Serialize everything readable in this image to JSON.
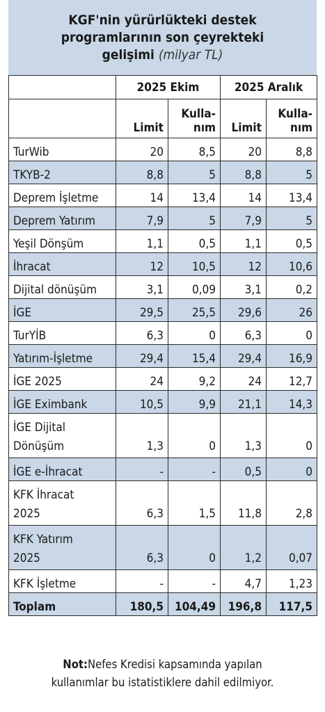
{
  "title": {
    "line1": "KGF'nin yürürlükteki destek",
    "line2": "programlarının son çeyrekteki",
    "line3_main": "gelişimi",
    "line3_unit": "(milyar TL)"
  },
  "header": {
    "period1": "2025 Ekim",
    "period2": "2025 Aralık",
    "limit": "Limit",
    "usage_top": "Kulla-",
    "usage_bottom": "nım"
  },
  "rows": [
    {
      "name": "TurWib",
      "v": [
        "20",
        "8,5",
        "20",
        "8,8"
      ]
    },
    {
      "name": "TKYB-2",
      "v": [
        "8,8",
        "5",
        "8,8",
        "5"
      ]
    },
    {
      "name": "Deprem İşletme",
      "v": [
        "14",
        "13,4",
        "14",
        "13,4"
      ]
    },
    {
      "name": "Deprem Yatırım",
      "v": [
        "7,9",
        "5",
        "7,9",
        "5"
      ]
    },
    {
      "name": "Yeşil Dönşüm",
      "v": [
        "1,1",
        "0,5",
        "1,1",
        "0,5"
      ]
    },
    {
      "name": "İhracat",
      "v": [
        "12",
        "10,5",
        "12",
        "10,6"
      ]
    },
    {
      "name": "Dijital dönüşüm",
      "v": [
        "3,1",
        "0,09",
        "3,1",
        "0,2"
      ]
    },
    {
      "name": "İGE",
      "v": [
        "29,5",
        "25,5",
        "29,6",
        "26"
      ]
    },
    {
      "name": "TurYİB",
      "v": [
        "6,3",
        "0",
        "6,3",
        "0"
      ]
    },
    {
      "name": "Yatırım-İşletme",
      "v": [
        "29,4",
        "15,4",
        "29,4",
        "16,9"
      ]
    },
    {
      "name": "İGE 2025",
      "v": [
        "24",
        "9,2",
        "24",
        "12,7"
      ]
    },
    {
      "name": "İGE Eximbank",
      "v": [
        "10,5",
        "9,9",
        "21,1",
        "14,3"
      ]
    },
    {
      "name": "İGE Dijital",
      "name2": "Dönüşüm",
      "v": [
        "1,3",
        "0",
        "1,3",
        "0"
      ]
    },
    {
      "name": "İGE e-İhracat",
      "v": [
        "-",
        "-",
        "0,5",
        "0"
      ]
    },
    {
      "name": "KFK İhracat",
      "name2": "2025",
      "v": [
        "6,3",
        "1,5",
        "11,8",
        "2,8"
      ]
    },
    {
      "name": "KFK Yatırım",
      "name2": "2025",
      "v": [
        "6,3",
        "0",
        "1,2",
        "0,07"
      ]
    },
    {
      "name": "KFK İşletme",
      "v": [
        "-",
        "-",
        "4,7",
        "1,23"
      ]
    }
  ],
  "total": {
    "name": "Toplam",
    "v": [
      "180,5",
      "104,49",
      "196,8",
      "117,5"
    ]
  },
  "note": {
    "label": "Not:",
    "text1": "Nefes Kredisi kapsamında yapılan",
    "text2": "kullanımlar bu istatistiklere dahil edilmiyor."
  },
  "colors": {
    "shade": "#c9d7e7"
  }
}
